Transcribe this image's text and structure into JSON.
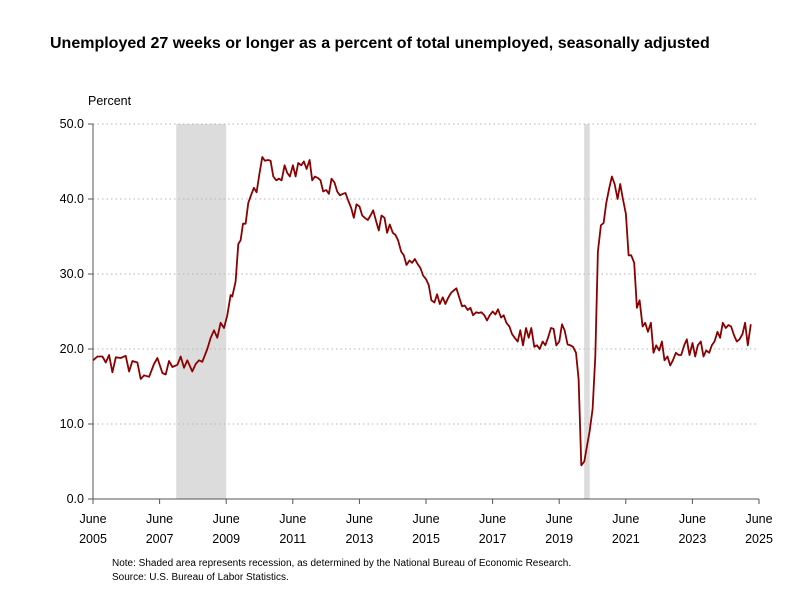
{
  "chart_data": {
    "type": "line",
    "title": "Unemployed 27 weeks or longer as a percent of total unemployed, seasonally adjusted",
    "ylabel": "Percent",
    "xlabel": "",
    "ylim": [
      0,
      50
    ],
    "y_ticks": [
      "0.0",
      "10.0",
      "20.0",
      "30.0",
      "40.0",
      "50.0"
    ],
    "x_range": [
      2005.4167,
      2025.4167
    ],
    "x_ticks": [
      {
        "month": "June",
        "year": "2005",
        "x": 2005.4167
      },
      {
        "month": "June",
        "year": "2007",
        "x": 2007.4167
      },
      {
        "month": "June",
        "year": "2009",
        "x": 2009.4167
      },
      {
        "month": "June",
        "year": "2011",
        "x": 2011.4167
      },
      {
        "month": "June",
        "year": "2013",
        "x": 2013.4167
      },
      {
        "month": "June",
        "year": "2015",
        "x": 2015.4167
      },
      {
        "month": "June",
        "year": "2017",
        "x": 2017.4167
      },
      {
        "month": "June",
        "year": "2019",
        "x": 2019.4167
      },
      {
        "month": "June",
        "year": "2021",
        "x": 2021.4167
      },
      {
        "month": "June",
        "year": "2023",
        "x": 2023.4167
      },
      {
        "month": "June",
        "year": "2025",
        "x": 2025.4167
      }
    ],
    "recessions": [
      {
        "start": 2007.9167,
        "end": 2009.4167
      },
      {
        "start": 2020.1667,
        "end": 2020.3333
      }
    ],
    "grid": true,
    "series": [
      {
        "name": "Unemployed 27 weeks or longer as a percent of total unemployed",
        "color": "#8b0000",
        "points": [
          [
            2005.42,
            18.5
          ],
          [
            2005.55,
            19.0
          ],
          [
            2005.7,
            19.0
          ],
          [
            2005.8,
            18.2
          ],
          [
            2005.9,
            19.2
          ],
          [
            2006.0,
            16.9
          ],
          [
            2006.1,
            18.9
          ],
          [
            2006.25,
            18.8
          ],
          [
            2006.4,
            19.1
          ],
          [
            2006.5,
            17.0
          ],
          [
            2006.6,
            18.4
          ],
          [
            2006.75,
            18.2
          ],
          [
            2006.85,
            16.0
          ],
          [
            2006.95,
            16.5
          ],
          [
            2007.1,
            16.3
          ],
          [
            2007.25,
            18.0
          ],
          [
            2007.35,
            18.8
          ],
          [
            2007.5,
            16.8
          ],
          [
            2007.6,
            16.6
          ],
          [
            2007.7,
            18.4
          ],
          [
            2007.8,
            17.6
          ],
          [
            2007.95,
            17.9
          ],
          [
            2008.05,
            19.0
          ],
          [
            2008.15,
            17.5
          ],
          [
            2008.25,
            18.5
          ],
          [
            2008.4,
            17.0
          ],
          [
            2008.5,
            18.0
          ],
          [
            2008.6,
            18.5
          ],
          [
            2008.7,
            18.3
          ],
          [
            2008.85,
            20.0
          ],
          [
            2008.95,
            21.5
          ],
          [
            2009.05,
            22.5
          ],
          [
            2009.15,
            21.5
          ],
          [
            2009.25,
            23.5
          ],
          [
            2009.35,
            22.8
          ],
          [
            2009.45,
            24.5
          ],
          [
            2009.55,
            27.2
          ],
          [
            2009.6,
            27.0
          ],
          [
            2009.7,
            29.0
          ],
          [
            2009.78,
            34.0
          ],
          [
            2009.85,
            34.5
          ],
          [
            2009.92,
            36.7
          ],
          [
            2010.0,
            36.7
          ],
          [
            2010.08,
            39.5
          ],
          [
            2010.16,
            40.5
          ],
          [
            2010.25,
            41.5
          ],
          [
            2010.33,
            40.9
          ],
          [
            2010.42,
            43.5
          ],
          [
            2010.5,
            45.6
          ],
          [
            2010.58,
            45.1
          ],
          [
            2010.67,
            45.2
          ],
          [
            2010.75,
            45.1
          ],
          [
            2010.83,
            43.0
          ],
          [
            2010.92,
            42.5
          ],
          [
            2011.0,
            42.7
          ],
          [
            2011.08,
            42.5
          ],
          [
            2011.17,
            44.5
          ],
          [
            2011.25,
            43.5
          ],
          [
            2011.33,
            43.0
          ],
          [
            2011.42,
            44.5
          ],
          [
            2011.5,
            43.0
          ],
          [
            2011.58,
            44.8
          ],
          [
            2011.67,
            44.5
          ],
          [
            2011.75,
            45.0
          ],
          [
            2011.83,
            44.0
          ],
          [
            2011.92,
            45.2
          ],
          [
            2012.0,
            42.5
          ],
          [
            2012.08,
            43.0
          ],
          [
            2012.17,
            42.8
          ],
          [
            2012.25,
            42.5
          ],
          [
            2012.33,
            41.0
          ],
          [
            2012.42,
            41.2
          ],
          [
            2012.5,
            40.7
          ],
          [
            2012.58,
            42.7
          ],
          [
            2012.67,
            42.2
          ],
          [
            2012.75,
            41.0
          ],
          [
            2012.83,
            40.5
          ],
          [
            2012.92,
            40.7
          ],
          [
            2013.0,
            40.8
          ],
          [
            2013.08,
            39.8
          ],
          [
            2013.17,
            38.8
          ],
          [
            2013.25,
            37.5
          ],
          [
            2013.33,
            39.3
          ],
          [
            2013.42,
            39.0
          ],
          [
            2013.5,
            37.8
          ],
          [
            2013.58,
            37.5
          ],
          [
            2013.67,
            37.2
          ],
          [
            2013.75,
            37.8
          ],
          [
            2013.83,
            38.5
          ],
          [
            2013.92,
            37.0
          ],
          [
            2014.0,
            35.8
          ],
          [
            2014.08,
            37.8
          ],
          [
            2014.17,
            37.5
          ],
          [
            2014.25,
            35.5
          ],
          [
            2014.33,
            36.6
          ],
          [
            2014.42,
            35.5
          ],
          [
            2014.5,
            35.2
          ],
          [
            2014.58,
            34.5
          ],
          [
            2014.67,
            33.0
          ],
          [
            2014.75,
            32.5
          ],
          [
            2014.83,
            31.2
          ],
          [
            2014.92,
            31.8
          ],
          [
            2015.0,
            31.5
          ],
          [
            2015.08,
            32.0
          ],
          [
            2015.17,
            31.3
          ],
          [
            2015.25,
            30.8
          ],
          [
            2015.33,
            29.8
          ],
          [
            2015.42,
            29.3
          ],
          [
            2015.5,
            28.5
          ],
          [
            2015.58,
            26.5
          ],
          [
            2015.67,
            26.2
          ],
          [
            2015.75,
            27.3
          ],
          [
            2015.83,
            26.0
          ],
          [
            2015.92,
            26.9
          ],
          [
            2016.0,
            26.0
          ],
          [
            2016.08,
            26.8
          ],
          [
            2016.17,
            27.5
          ],
          [
            2016.25,
            27.8
          ],
          [
            2016.33,
            28.1
          ],
          [
            2016.42,
            26.8
          ],
          [
            2016.5,
            25.7
          ],
          [
            2016.58,
            25.8
          ],
          [
            2016.67,
            25.2
          ],
          [
            2016.75,
            25.5
          ],
          [
            2016.83,
            24.5
          ],
          [
            2016.92,
            24.9
          ],
          [
            2017.0,
            24.8
          ],
          [
            2017.08,
            24.9
          ],
          [
            2017.17,
            24.5
          ],
          [
            2017.25,
            23.8
          ],
          [
            2017.33,
            24.5
          ],
          [
            2017.42,
            25.0
          ],
          [
            2017.5,
            24.6
          ],
          [
            2017.58,
            25.3
          ],
          [
            2017.67,
            24.2
          ],
          [
            2017.75,
            24.5
          ],
          [
            2017.83,
            23.5
          ],
          [
            2017.92,
            23.0
          ],
          [
            2018.0,
            22.0
          ],
          [
            2018.08,
            21.5
          ],
          [
            2018.17,
            21.0
          ],
          [
            2018.25,
            22.5
          ],
          [
            2018.33,
            20.5
          ],
          [
            2018.42,
            22.8
          ],
          [
            2018.5,
            21.5
          ],
          [
            2018.58,
            22.8
          ],
          [
            2018.67,
            20.3
          ],
          [
            2018.75,
            20.5
          ],
          [
            2018.83,
            20.0
          ],
          [
            2018.92,
            21.0
          ],
          [
            2019.0,
            20.5
          ],
          [
            2019.08,
            21.5
          ],
          [
            2019.17,
            22.8
          ],
          [
            2019.25,
            22.7
          ],
          [
            2019.33,
            20.5
          ],
          [
            2019.42,
            21.0
          ],
          [
            2019.5,
            23.3
          ],
          [
            2019.58,
            22.5
          ],
          [
            2019.67,
            20.6
          ],
          [
            2019.75,
            20.5
          ],
          [
            2019.83,
            20.3
          ],
          [
            2019.92,
            19.5
          ],
          [
            2020.0,
            16.0
          ],
          [
            2020.08,
            4.5
          ],
          [
            2020.17,
            5.0
          ],
          [
            2020.25,
            7.0
          ],
          [
            2020.33,
            9.0
          ],
          [
            2020.42,
            12.0
          ],
          [
            2020.5,
            19.0
          ],
          [
            2020.58,
            33.0
          ],
          [
            2020.67,
            36.5
          ],
          [
            2020.75,
            36.8
          ],
          [
            2020.83,
            39.5
          ],
          [
            2020.92,
            41.5
          ],
          [
            2021.0,
            43.0
          ],
          [
            2021.08,
            42.0
          ],
          [
            2021.17,
            40.0
          ],
          [
            2021.25,
            42.0
          ],
          [
            2021.33,
            40.0
          ],
          [
            2021.42,
            38.0
          ],
          [
            2021.5,
            32.5
          ],
          [
            2021.58,
            32.5
          ],
          [
            2021.67,
            31.5
          ],
          [
            2021.75,
            25.5
          ],
          [
            2021.83,
            26.5
          ],
          [
            2021.92,
            23.0
          ],
          [
            2022.0,
            23.5
          ],
          [
            2022.08,
            22.3
          ],
          [
            2022.17,
            23.5
          ],
          [
            2022.25,
            19.5
          ],
          [
            2022.33,
            20.5
          ],
          [
            2022.42,
            19.8
          ],
          [
            2022.5,
            21.0
          ],
          [
            2022.58,
            18.5
          ],
          [
            2022.67,
            19.0
          ],
          [
            2022.75,
            17.8
          ],
          [
            2022.83,
            18.5
          ],
          [
            2022.92,
            19.5
          ],
          [
            2023.0,
            19.2
          ],
          [
            2023.08,
            19.2
          ],
          [
            2023.17,
            20.5
          ],
          [
            2023.25,
            21.3
          ],
          [
            2023.33,
            19.2
          ],
          [
            2023.42,
            20.8
          ],
          [
            2023.5,
            19.0
          ],
          [
            2023.58,
            20.5
          ],
          [
            2023.67,
            21.0
          ],
          [
            2023.75,
            19.0
          ],
          [
            2023.83,
            19.8
          ],
          [
            2023.92,
            19.5
          ],
          [
            2024.0,
            20.5
          ],
          [
            2024.08,
            21.0
          ],
          [
            2024.17,
            22.3
          ],
          [
            2024.25,
            21.5
          ],
          [
            2024.33,
            23.5
          ],
          [
            2024.42,
            22.8
          ],
          [
            2024.5,
            23.2
          ],
          [
            2024.58,
            23.0
          ],
          [
            2024.67,
            21.8
          ],
          [
            2024.75,
            21.0
          ],
          [
            2024.83,
            21.3
          ],
          [
            2024.92,
            22.0
          ],
          [
            2025.0,
            23.5
          ],
          [
            2025.08,
            20.5
          ],
          [
            2025.17,
            23.3
          ]
        ]
      }
    ]
  },
  "notes": {
    "line1": "Note: Shaded area represents recession, as determined by the National Bureau of Economic Research.",
    "line2": "Source: U.S. Bureau of Labor Statistics."
  }
}
